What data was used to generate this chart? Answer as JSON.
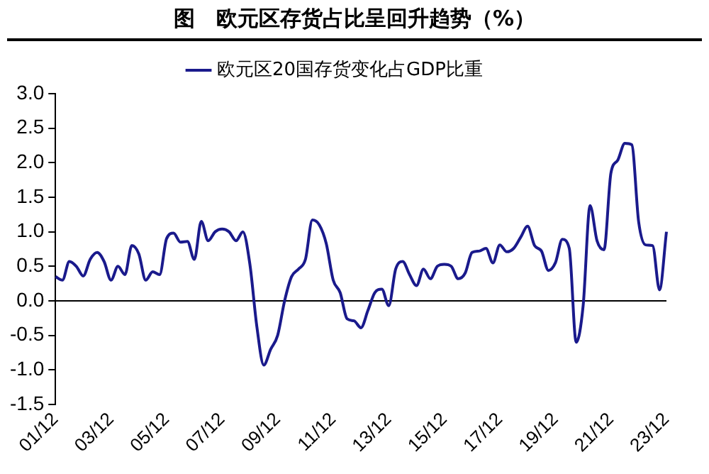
{
  "chart_data": {
    "type": "line",
    "title": "图　欧元区存货占比呈回升趋势（%）",
    "categories": [
      "01/12",
      null,
      null,
      null,
      null,
      null,
      null,
      null,
      "03/12",
      null,
      null,
      null,
      null,
      null,
      null,
      null,
      "05/12",
      null,
      null,
      null,
      null,
      null,
      null,
      null,
      "07/12",
      null,
      null,
      null,
      null,
      null,
      null,
      null,
      "09/12",
      null,
      null,
      null,
      null,
      null,
      null,
      null,
      "11/12",
      null,
      null,
      null,
      null,
      null,
      null,
      null,
      "13/12",
      null,
      null,
      null,
      null,
      null,
      null,
      null,
      "15/12",
      null,
      null,
      null,
      null,
      null,
      null,
      null,
      "17/12",
      null,
      null,
      null,
      null,
      null,
      null,
      null,
      "19/12",
      null,
      null,
      null,
      null,
      null,
      null,
      null,
      "21/12",
      null,
      null,
      null,
      null,
      null,
      null,
      null,
      "23/12"
    ],
    "series": [
      {
        "name": "欧元区20国存货变化占GDP比重",
        "color": "#1a1a8c",
        "values": [
          0.35,
          0.3,
          0.57,
          0.5,
          0.36,
          0.6,
          0.7,
          0.57,
          0.3,
          0.5,
          0.38,
          0.8,
          0.68,
          0.3,
          0.42,
          0.38,
          0.9,
          0.98,
          0.85,
          0.86,
          0.6,
          1.15,
          0.87,
          1.0,
          1.04,
          1.0,
          0.87,
          1.0,
          0.53,
          -0.37,
          -0.93,
          -0.7,
          -0.5,
          0.0,
          0.35,
          0.46,
          0.6,
          1.17,
          1.1,
          0.83,
          0.3,
          0.12,
          -0.26,
          -0.29,
          -0.39,
          -0.14,
          0.12,
          0.17,
          -0.07,
          0.46,
          0.57,
          0.38,
          0.22,
          0.46,
          0.32,
          0.5,
          0.53,
          0.5,
          0.32,
          0.4,
          0.7,
          0.72,
          0.76,
          0.55,
          0.81,
          0.71,
          0.76,
          0.92,
          1.08,
          0.8,
          0.72,
          0.44,
          0.55,
          0.89,
          0.76,
          -0.6,
          -0.07,
          1.38,
          0.87,
          0.74,
          1.85,
          2.04,
          2.28,
          2.26,
          1.14,
          0.81,
          0.8,
          0.16,
          1.0
        ]
      }
    ],
    "ylim": [
      -1.5,
      3.0
    ],
    "yticks": [
      -1.5,
      {
        "value": -1,
        "label": "-1.0"
      },
      -0.5,
      {
        "value": 0,
        "label": "0.0"
      },
      0.5,
      {
        "value": 1,
        "label": "1.0"
      },
      1.5,
      {
        "value": 2,
        "label": "2.0"
      },
      2.5,
      {
        "value": 3,
        "label": "3.0"
      }
    ],
    "legend": "top",
    "marker": "none",
    "line_style": "solid"
  }
}
